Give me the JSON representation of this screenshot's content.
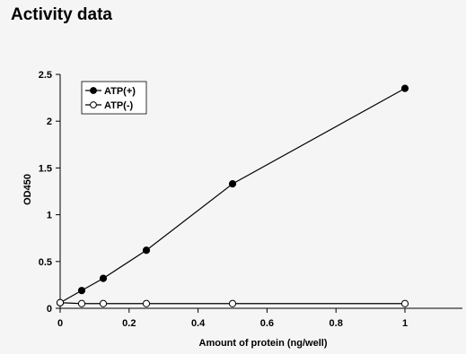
{
  "page": {
    "title": "Activity data"
  },
  "chart_data": {
    "type": "line",
    "title": "",
    "xlabel": "Amount of protein (ng/well)",
    "ylabel": "OD450",
    "xlim": [
      0,
      1.2
    ],
    "ylim": [
      0,
      2.5
    ],
    "xticks": [
      0,
      0.2,
      0.4,
      0.6,
      0.8,
      1
    ],
    "xtick_labels": [
      "0",
      "0.2",
      "0.4",
      "0.6",
      "0.8",
      "1"
    ],
    "yticks": [
      0,
      0.5,
      1,
      1.5,
      2,
      2.5
    ],
    "ytick_labels": [
      "0",
      "0.5",
      "1",
      "1.5",
      "2",
      "2.5"
    ],
    "grid": false,
    "legend_position": "top-left",
    "series": [
      {
        "name": "ATP(+)",
        "marker": "filled-circle",
        "color": "#000000",
        "x": [
          0,
          0.0625,
          0.125,
          0.25,
          0.5,
          1
        ],
        "y": [
          0.06,
          0.19,
          0.32,
          0.62,
          1.33,
          2.35
        ]
      },
      {
        "name": "ATP(-)",
        "marker": "open-circle",
        "color": "#000000",
        "x": [
          0,
          0.0625,
          0.125,
          0.25,
          0.5,
          1
        ],
        "y": [
          0.06,
          0.05,
          0.05,
          0.05,
          0.05,
          0.05
        ]
      }
    ]
  }
}
